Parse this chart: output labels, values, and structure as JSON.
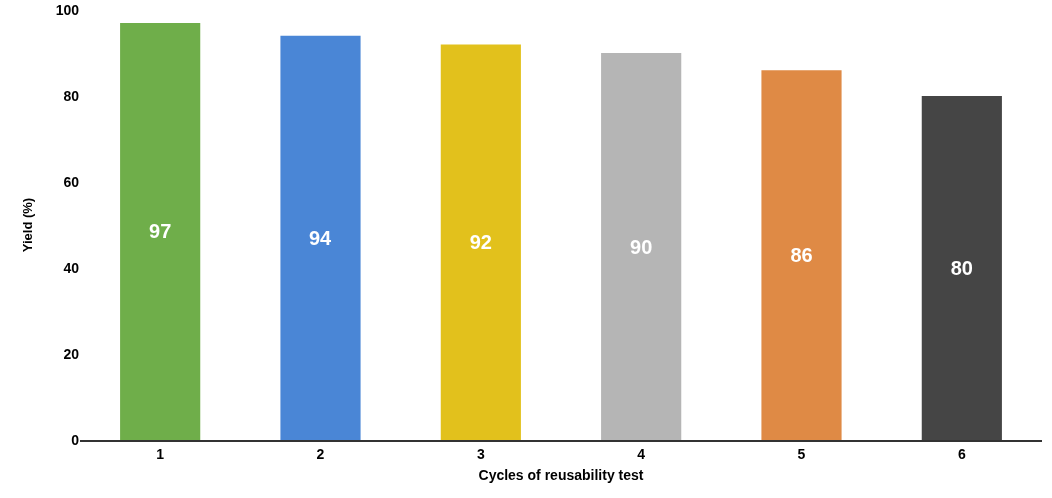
{
  "chart_data": {
    "type": "bar",
    "xlabel": "Cycles of reusability test",
    "ylabel": "Yield (%)",
    "categories": [
      "1",
      "2",
      "3",
      "4",
      "5",
      "6"
    ],
    "values": [
      97,
      94,
      92,
      90,
      86,
      80
    ],
    "colors": [
      "#6fae4a",
      "#4a86d6",
      "#e2c11c",
      "#b5b5b5",
      "#df8a45",
      "#454545"
    ],
    "ylim": [
      0,
      100
    ],
    "yticks": [
      0,
      20,
      40,
      60,
      80,
      100
    ],
    "grid": false,
    "data_labels": true
  }
}
